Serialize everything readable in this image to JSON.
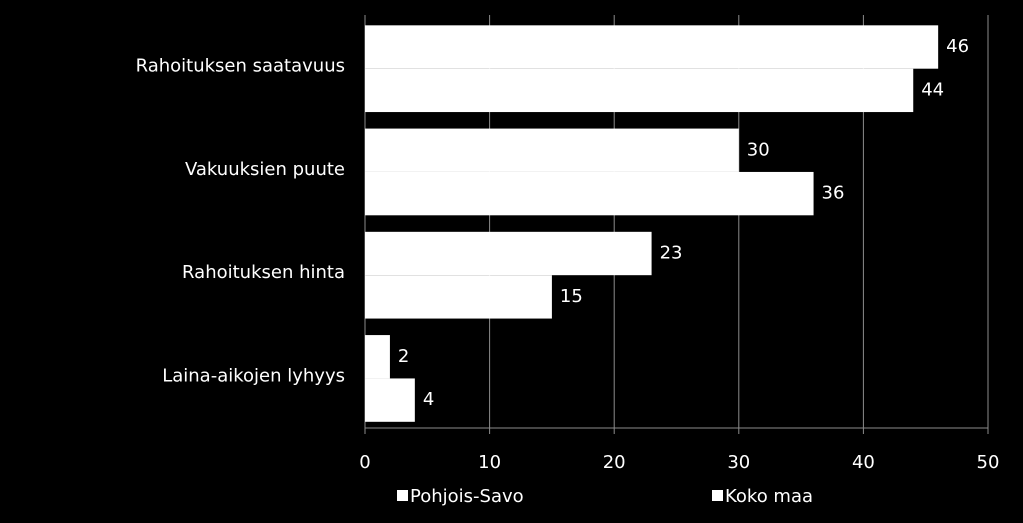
{
  "chart_data": {
    "type": "bar",
    "orientation": "horizontal",
    "categories": [
      "Rahoituksen saatavuus",
      "Vakuuksien puute",
      "Rahoituksen hinta",
      "Laina-aikojen lyhyys"
    ],
    "series": [
      {
        "name": "Pohjois-Savo",
        "color": "#ffffff",
        "values": [
          46,
          30,
          23,
          2
        ]
      },
      {
        "name": "Koko maa",
        "color": "#ffffff",
        "values": [
          44,
          36,
          15,
          4
        ]
      }
    ],
    "xlim": [
      0,
      50
    ],
    "xticks": [
      0,
      10,
      20,
      30,
      40,
      50
    ],
    "grid": true,
    "legend": "bottom"
  }
}
